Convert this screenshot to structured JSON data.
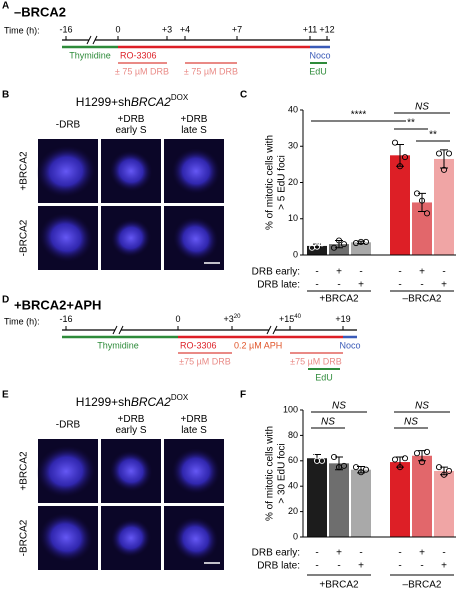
{
  "panels": {
    "A": {
      "letter": "A",
      "title": "–BRCA2",
      "time_label": "Time (h):",
      "ticks": [
        "-16",
        "0",
        "+3",
        "+4",
        "+7",
        "+11",
        "+12"
      ],
      "labels": {
        "thymidine": "Thymidine",
        "ro": "RO-3306",
        "drb1": "± 75 µM DRB",
        "drb2": "± 75 µM DRB",
        "noco": "Noco",
        "edu": "EdU"
      }
    },
    "B": {
      "letter": "B",
      "header": {
        "prefix": "H1299+sh",
        "gene": "BRCA2",
        "sup": "DOX"
      },
      "columns": [
        [
          "-DRB"
        ],
        [
          "+DRB",
          "early S"
        ],
        [
          "+DRB",
          "late S"
        ]
      ],
      "rows": [
        "+BRCA2",
        "-BRCA2"
      ]
    },
    "D": {
      "letter": "D",
      "title": "+BRCA2+APH",
      "time_label": "Time (h):",
      "ticks": [
        {
          "main": "-16"
        },
        {
          "main": "0"
        },
        {
          "main": "+3",
          "sup": "20"
        },
        {
          "main": "+15",
          "sup": "40"
        },
        {
          "main": "+19"
        }
      ],
      "labels": {
        "thymidine": "Thymidine",
        "ro": "RO-3306",
        "aph": "0.2 µM APH",
        "drb1": "±75 µM DRB",
        "drb2": "±75 µM DRB",
        "noco": "Noco",
        "edu": "EdU"
      }
    },
    "E": {
      "letter": "E",
      "header": {
        "prefix": "H1299+sh",
        "gene": "BRCA2",
        "sup": "DOX"
      },
      "columns": [
        [
          "-DRB"
        ],
        [
          "+DRB",
          "early S"
        ],
        [
          "+DRB",
          "late S"
        ]
      ],
      "rows": [
        "+BRCA2",
        "-BRCA2"
      ]
    }
  },
  "chart_data": [
    {
      "type": "bar",
      "panel": "C",
      "ylabel": [
        "% of mitotic cells with",
        "> 5 EdU foci"
      ],
      "categories": [
        null,
        null,
        null,
        null,
        null,
        null
      ],
      "values": [
        2.5,
        3,
        3.5,
        27.5,
        14.5,
        26.5
      ],
      "errors": [
        0.5,
        1,
        0.3,
        3,
        2.5,
        2.5
      ],
      "points": [
        [
          2,
          2.3,
          3.2
        ],
        [
          2,
          4,
          3
        ],
        [
          3.3,
          3.6,
          3.6
        ],
        [
          31,
          24.5,
          27
        ],
        [
          17,
          15,
          11.5
        ],
        [
          28,
          23.5,
          28
        ]
      ],
      "colors": [
        "#1c1c1c",
        "#6e6e6e",
        "#a9a9a9",
        "#dd1f26",
        "#e2676b",
        "#f0a5a5"
      ],
      "ylim": [
        0,
        40
      ],
      "yticks": [
        0,
        10,
        20,
        30,
        40
      ],
      "conditions": [
        {
          "label": "DRB early:",
          "signs": [
            "-",
            "+",
            "-",
            "-",
            "+",
            "-"
          ]
        },
        {
          "label": "DRB late:",
          "signs": [
            "-",
            "-",
            "+",
            "-",
            "-",
            "+"
          ]
        }
      ],
      "groups": [
        "+BRCA2",
        "–BRCA2"
      ],
      "annotations": [
        "****",
        "NS",
        "**",
        "**"
      ]
    },
    {
      "type": "bar",
      "panel": "F",
      "ylabel": [
        "% of mitotic cells with",
        "> 30 EdU foci"
      ],
      "categories": [
        null,
        null,
        null,
        null,
        null,
        null
      ],
      "values": [
        62,
        58,
        53,
        59,
        64,
        52
      ],
      "errors": [
        3,
        5,
        2.5,
        4,
        4,
        3
      ],
      "points": [
        [
          66,
          60,
          60
        ],
        [
          63,
          55,
          56
        ],
        [
          55,
          51,
          53
        ],
        [
          61,
          55,
          62
        ],
        [
          66,
          59,
          67
        ],
        [
          55,
          49,
          52
        ]
      ],
      "colors": [
        "#1c1c1c",
        "#6e6e6e",
        "#a9a9a9",
        "#dd1f26",
        "#e2676b",
        "#f0a5a5"
      ],
      "ylim": [
        0,
        100
      ],
      "yticks": [
        0,
        20,
        40,
        60,
        80,
        100
      ],
      "conditions": [
        {
          "label": "DRB early:",
          "signs": [
            "-",
            "+",
            "-",
            "-",
            "+",
            "-"
          ]
        },
        {
          "label": "DRB late:",
          "signs": [
            "-",
            "-",
            "+",
            "-",
            "-",
            "+"
          ]
        }
      ],
      "groups": [
        "+BRCA2",
        "–BRCA2"
      ],
      "annotations": [
        "NS",
        "NS",
        "NS",
        "NS"
      ]
    }
  ]
}
